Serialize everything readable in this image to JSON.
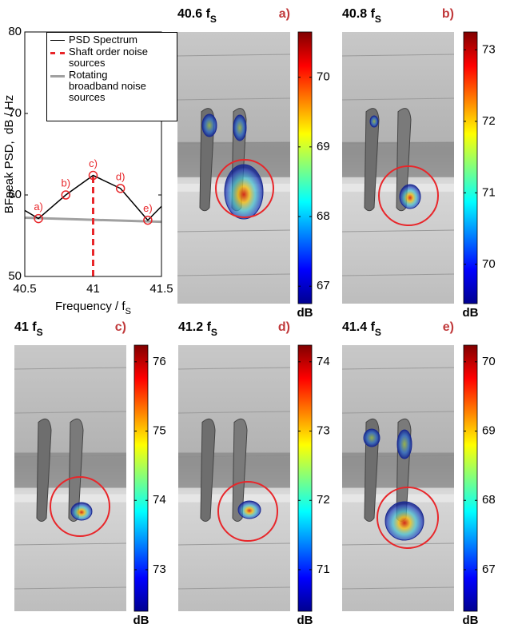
{
  "chart_data": [
    {
      "type": "line",
      "y_label": "BFpeak PSD,  dB / Hz",
      "x_label": "Frequency / f",
      "x_label_sub": "S",
      "xlim": [
        40.5,
        41.5
      ],
      "xticks": [
        40.5,
        41,
        41.5
      ],
      "ylim": [
        50,
        80
      ],
      "yticks": [
        50,
        60,
        70,
        80
      ],
      "legend": "upper right",
      "series": [
        {
          "name": "PSD Spectrum",
          "color": "#000000",
          "x": [
            40.5,
            40.6,
            40.8,
            41,
            41.2,
            41.4,
            41.5
          ],
          "values": [
            58.1,
            57.1,
            60,
            62.4,
            60.8,
            56.9,
            58.6
          ]
        },
        {
          "name": "Shaft order noise sources",
          "color": "#e8262a",
          "x": [
            41,
            41
          ],
          "values": [
            50,
            62.4
          ]
        },
        {
          "name": "Rotating broadband noise sources",
          "color": "#a0a0a0",
          "x": [
            40.5,
            41.5
          ],
          "values": [
            57.2,
            56.7
          ]
        }
      ],
      "annotations": [
        {
          "text": "a)",
          "x": 40.6,
          "y": 57.1
        },
        {
          "text": "b)",
          "x": 40.8,
          "y": 60
        },
        {
          "text": "c)",
          "x": 41,
          "y": 62.4
        },
        {
          "text": "d)",
          "x": 41.2,
          "y": 60.8
        },
        {
          "text": "e)",
          "x": 41.4,
          "y": 56.9
        }
      ]
    },
    {
      "type": "heatmap",
      "title": "40.6 f",
      "title_sub": "S",
      "label": "a)",
      "colorbar_label": "dB",
      "colormap": "jet",
      "clim": [
        66.75,
        70.65
      ],
      "cticks": [
        67,
        68,
        69,
        70
      ]
    },
    {
      "type": "heatmap",
      "title": "40.8 f",
      "title_sub": "S",
      "label": "b)",
      "colorbar_label": "dB",
      "colormap": "jet",
      "clim": [
        69.45,
        73.25
      ],
      "cticks": [
        70,
        71,
        72,
        73
      ]
    },
    {
      "type": "heatmap",
      "title": "41 f",
      "title_sub": "S",
      "label": "c)",
      "colorbar_label": "dB",
      "colormap": "jet",
      "clim": [
        72.4,
        76.24
      ],
      "cticks": [
        73,
        74,
        75,
        76
      ]
    },
    {
      "type": "heatmap",
      "title": "41.2 f",
      "title_sub": "S",
      "label": "d)",
      "colorbar_label": "dB",
      "colormap": "jet",
      "clim": [
        70.4,
        74.24
      ],
      "cticks": [
        71,
        72,
        73,
        74
      ]
    },
    {
      "type": "heatmap",
      "title": "41.4 f",
      "title_sub": "S",
      "label": "e)",
      "colorbar_label": "dB",
      "colormap": "jet",
      "clim": [
        66.4,
        70.24
      ],
      "cticks": [
        67,
        68,
        69,
        70
      ]
    }
  ]
}
